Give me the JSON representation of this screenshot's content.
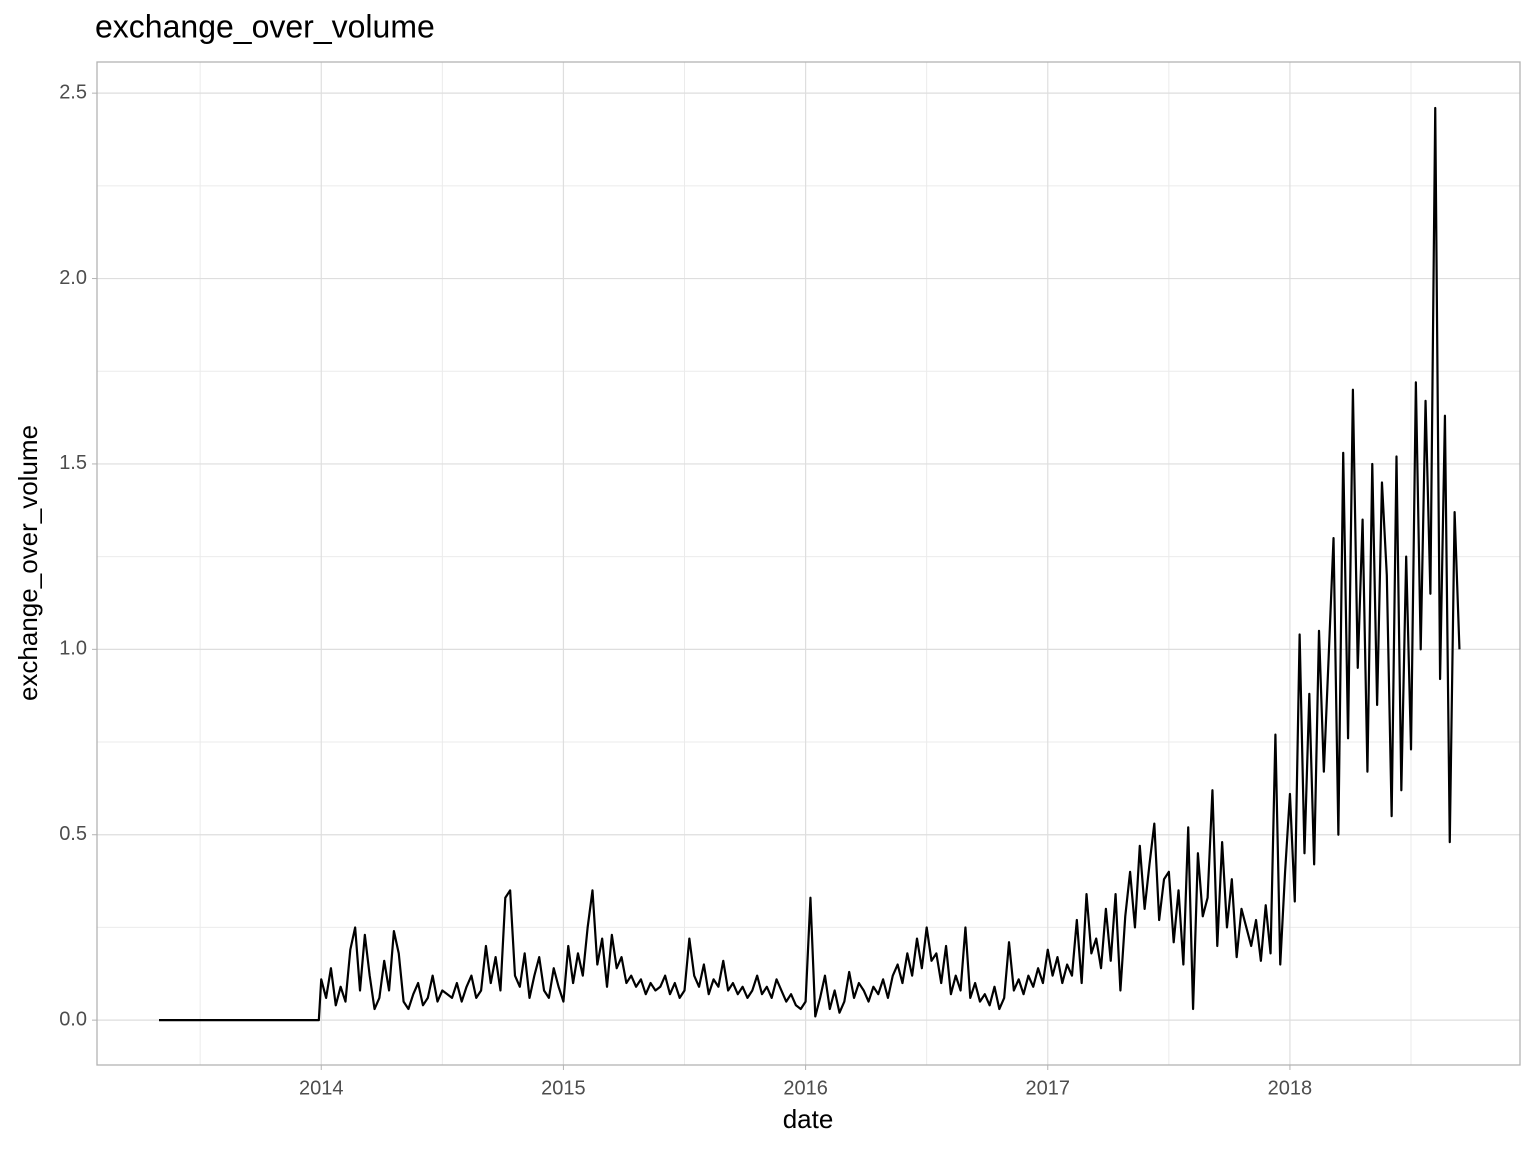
{
  "chart_data": {
    "type": "line",
    "title": "exchange_over_volume",
    "x_label": "date",
    "y_label": "exchange_over_volume",
    "xlim": [
      2013.074,
      2018.95
    ],
    "ylim": [
      -0.121,
      2.584
    ],
    "xticks": [
      2014,
      2015,
      2016,
      2017,
      2018
    ],
    "yticks": [
      {
        "value": 0,
        "label": "0.0"
      },
      0.5,
      {
        "value": 1,
        "label": "1.0"
      },
      1.5,
      {
        "value": 2,
        "label": "2.0"
      },
      2.5
    ],
    "grid": true,
    "series": [
      {
        "color": "#000000",
        "x": [
          2013.33,
          2013.99,
          2014.0,
          2014.02,
          2014.04,
          2014.06,
          2014.08,
          2014.1,
          2014.12,
          2014.14,
          2014.16,
          2014.18,
          2014.2,
          2014.22,
          2014.24,
          2014.26,
          2014.28,
          2014.3,
          2014.32,
          2014.34,
          2014.36,
          2014.38,
          2014.4,
          2014.42,
          2014.44,
          2014.46,
          2014.48,
          2014.5,
          2014.52,
          2014.54,
          2014.56,
          2014.58,
          2014.6,
          2014.62,
          2014.64,
          2014.66,
          2014.68,
          2014.7,
          2014.72,
          2014.74,
          2014.76,
          2014.78,
          2014.8,
          2014.82,
          2014.84,
          2014.86,
          2014.88,
          2014.9,
          2014.92,
          2014.94,
          2014.96,
          2014.98,
          2015.0,
          2015.02,
          2015.04,
          2015.06,
          2015.08,
          2015.1,
          2015.12,
          2015.14,
          2015.16,
          2015.18,
          2015.2,
          2015.22,
          2015.24,
          2015.26,
          2015.28,
          2015.3,
          2015.32,
          2015.34,
          2015.36,
          2015.38,
          2015.4,
          2015.42,
          2015.44,
          2015.46,
          2015.48,
          2015.5,
          2015.52,
          2015.54,
          2015.56,
          2015.58,
          2015.6,
          2015.62,
          2015.64,
          2015.66,
          2015.68,
          2015.7,
          2015.72,
          2015.74,
          2015.76,
          2015.78,
          2015.8,
          2015.82,
          2015.84,
          2015.86,
          2015.88,
          2015.9,
          2015.92,
          2015.94,
          2015.96,
          2015.98,
          2016.0,
          2016.02,
          2016.04,
          2016.06,
          2016.08,
          2016.1,
          2016.12,
          2016.14,
          2016.16,
          2016.18,
          2016.2,
          2016.22,
          2016.24,
          2016.26,
          2016.28,
          2016.3,
          2016.32,
          2016.34,
          2016.36,
          2016.38,
          2016.4,
          2016.42,
          2016.44,
          2016.46,
          2016.48,
          2016.5,
          2016.52,
          2016.54,
          2016.56,
          2016.58,
          2016.6,
          2016.62,
          2016.64,
          2016.66,
          2016.68,
          2016.7,
          2016.72,
          2016.74,
          2016.76,
          2016.78,
          2016.8,
          2016.82,
          2016.84,
          2016.86,
          2016.88,
          2016.9,
          2016.92,
          2016.94,
          2016.96,
          2016.98,
          2017.0,
          2017.02,
          2017.04,
          2017.06,
          2017.08,
          2017.1,
          2017.12,
          2017.14,
          2017.16,
          2017.18,
          2017.2,
          2017.22,
          2017.24,
          2017.26,
          2017.28,
          2017.3,
          2017.32,
          2017.34,
          2017.36,
          2017.38,
          2017.4,
          2017.42,
          2017.44,
          2017.46,
          2017.48,
          2017.5,
          2017.52,
          2017.54,
          2017.56,
          2017.58,
          2017.6,
          2017.62,
          2017.64,
          2017.66,
          2017.68,
          2017.7,
          2017.72,
          2017.74,
          2017.76,
          2017.78,
          2017.8,
          2017.82,
          2017.84,
          2017.86,
          2017.88,
          2017.9,
          2017.92,
          2017.94,
          2017.96,
          2017.98,
          2018.0,
          2018.02,
          2018.04,
          2018.06,
          2018.08,
          2018.1,
          2018.12,
          2018.14,
          2018.16,
          2018.18,
          2018.2,
          2018.22,
          2018.24,
          2018.26,
          2018.28,
          2018.3,
          2018.32,
          2018.34,
          2018.36,
          2018.38,
          2018.4,
          2018.42,
          2018.44,
          2018.46,
          2018.48,
          2018.5,
          2018.52,
          2018.54,
          2018.56,
          2018.58,
          2018.6,
          2018.62,
          2018.64,
          2018.66,
          2018.68,
          2018.7
        ],
        "values": [
          0,
          0,
          0.11,
          0.06,
          0.14,
          0.04,
          0.09,
          0.05,
          0.19,
          0.25,
          0.08,
          0.23,
          0.12,
          0.03,
          0.06,
          0.16,
          0.08,
          0.24,
          0.18,
          0.05,
          0.03,
          0.07,
          0.1,
          0.04,
          0.06,
          0.12,
          0.05,
          0.08,
          0.07,
          0.06,
          0.1,
          0.05,
          0.09,
          0.12,
          0.06,
          0.08,
          0.2,
          0.1,
          0.17,
          0.08,
          0.33,
          0.35,
          0.12,
          0.09,
          0.18,
          0.06,
          0.12,
          0.17,
          0.08,
          0.06,
          0.14,
          0.09,
          0.05,
          0.2,
          0.1,
          0.18,
          0.12,
          0.25,
          0.35,
          0.15,
          0.22,
          0.09,
          0.23,
          0.14,
          0.17,
          0.1,
          0.12,
          0.09,
          0.11,
          0.07,
          0.1,
          0.08,
          0.09,
          0.12,
          0.07,
          0.1,
          0.06,
          0.08,
          0.22,
          0.12,
          0.09,
          0.15,
          0.07,
          0.11,
          0.09,
          0.16,
          0.08,
          0.1,
          0.07,
          0.09,
          0.06,
          0.08,
          0.12,
          0.07,
          0.09,
          0.06,
          0.11,
          0.08,
          0.05,
          0.07,
          0.04,
          0.03,
          0.05,
          0.33,
          0.01,
          0.06,
          0.12,
          0.03,
          0.08,
          0.02,
          0.05,
          0.13,
          0.06,
          0.1,
          0.08,
          0.05,
          0.09,
          0.07,
          0.11,
          0.06,
          0.12,
          0.15,
          0.1,
          0.18,
          0.12,
          0.22,
          0.14,
          0.25,
          0.16,
          0.18,
          0.1,
          0.2,
          0.07,
          0.12,
          0.08,
          0.25,
          0.06,
          0.1,
          0.05,
          0.07,
          0.04,
          0.09,
          0.03,
          0.06,
          0.21,
          0.08,
          0.11,
          0.07,
          0.12,
          0.09,
          0.14,
          0.1,
          0.19,
          0.12,
          0.17,
          0.1,
          0.15,
          0.12,
          0.27,
          0.1,
          0.34,
          0.18,
          0.22,
          0.14,
          0.3,
          0.16,
          0.34,
          0.08,
          0.28,
          0.4,
          0.25,
          0.47,
          0.3,
          0.42,
          0.53,
          0.27,
          0.38,
          0.4,
          0.21,
          0.35,
          0.15,
          0.52,
          0.03,
          0.45,
          0.28,
          0.33,
          0.62,
          0.2,
          0.48,
          0.25,
          0.38,
          0.17,
          0.3,
          0.25,
          0.2,
          0.27,
          0.16,
          0.31,
          0.18,
          0.77,
          0.15,
          0.4,
          0.61,
          0.32,
          1.04,
          0.45,
          0.88,
          0.42,
          1.05,
          0.67,
          0.98,
          1.3,
          0.5,
          1.53,
          0.76,
          1.7,
          0.95,
          1.35,
          0.67,
          1.5,
          0.85,
          1.45,
          1.2,
          0.55,
          1.52,
          0.62,
          1.25,
          0.73,
          1.72,
          1.0,
          1.67,
          1.15,
          2.46,
          0.92,
          1.63,
          0.48,
          1.37,
          1.0
        ]
      }
    ]
  }
}
